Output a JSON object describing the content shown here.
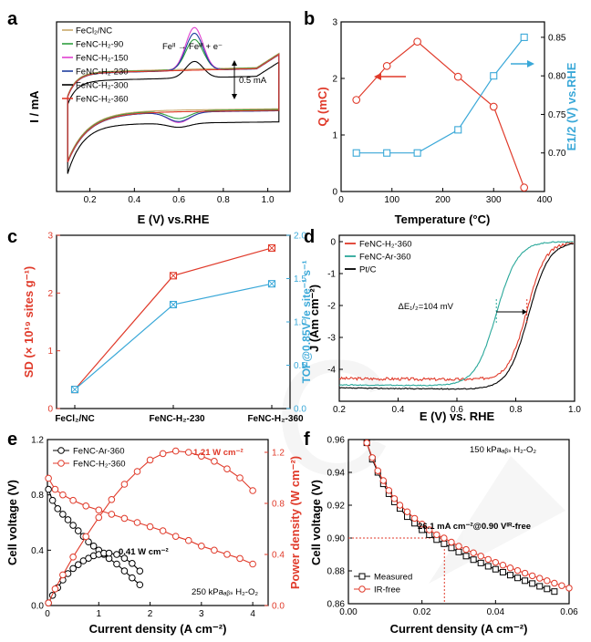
{
  "chart_data": [
    {
      "id": "a",
      "panel_label": "a",
      "type": "line",
      "xlabel": "E (V) vs.RHE",
      "ylabel": "I / mA",
      "xlim": [
        0.05,
        1.1
      ],
      "ylim": [
        -1.6,
        1.5
      ],
      "xticks": [
        0.2,
        0.4,
        0.6,
        0.8,
        1.0
      ],
      "xtick_labels": [
        "0.2",
        "0.4",
        "0.6",
        "0.8",
        "1.0"
      ],
      "annotation": "Feᴵᴵ → Feᴵᴵᴵ + e⁻",
      "scale_bar_label": "0.5 mA",
      "scale_bar_value": 0.5,
      "series": [
        {
          "name": "FeCl₂/NC",
          "color": "#c9a86a",
          "peak": 0.0,
          "shift": 0.04,
          "steep": 1.0
        },
        {
          "name": "FeNC-H₂-90",
          "color": "#2e9e3e",
          "peak": 0.55,
          "shift": 0.03,
          "steep": 1.0
        },
        {
          "name": "FeNC-H₂-150",
          "color": "#e040d0",
          "peak": 0.78,
          "shift": 0.02,
          "steep": 1.0
        },
        {
          "name": "FeNC-H₂-230",
          "color": "#1f3f9e",
          "peak": 0.68,
          "shift": 0.015,
          "steep": 1.0
        },
        {
          "name": "FeNC-H₂-300",
          "color": "#000000",
          "peak": 0.3,
          "shift": -0.12,
          "steep": 0.75
        },
        {
          "name": "FeNC-H₂-360",
          "color": "#e03a2a",
          "peak": 0.0,
          "shift": 0.02,
          "steep": 1.0
        }
      ]
    },
    {
      "id": "b",
      "panel_label": "b",
      "type": "line",
      "xlabel": "Temperature (°C)",
      "ylabel": "Q (mC)",
      "ylabel_right": "E1/2 (V) vs.RHE",
      "xlim": [
        0,
        400
      ],
      "ylim": [
        0,
        3
      ],
      "ylim_right": [
        0.65,
        0.87
      ],
      "xticks": [
        0,
        100,
        200,
        300,
        400
      ],
      "xtick_labels": [
        "0",
        "100",
        "200",
        "300",
        "400"
      ],
      "yticks": [
        0,
        1,
        2,
        3
      ],
      "ytick_labels": [
        "0",
        "1",
        "2",
        "3"
      ],
      "yticks_right": [
        0.7,
        0.75,
        0.8,
        0.85
      ],
      "ytick_labels_right": [
        "0.70",
        "0.75",
        "0.80",
        "0.85"
      ],
      "series": [
        {
          "name": "Q",
          "axis": "left",
          "color": "#e03a2a",
          "x": [
            30,
            90,
            150,
            230,
            300,
            360
          ],
          "values": [
            1.62,
            2.22,
            2.65,
            2.03,
            1.5,
            0.07
          ]
        },
        {
          "name": "E1/2",
          "axis": "right",
          "color": "#3aa8d8",
          "x": [
            30,
            90,
            150,
            230,
            300,
            360
          ],
          "values": [
            0.7,
            0.7,
            0.7,
            0.73,
            0.8,
            0.85
          ]
        }
      ]
    },
    {
      "id": "c",
      "panel_label": "c",
      "type": "line",
      "xlabel": "",
      "ylabel": "SD (× 10¹⁹ sites g⁻¹)",
      "ylabel_right": "TOF@0.85V /e site⁻¹ s⁻¹",
      "categories": [
        "FeCl₂/NC",
        "FeNC-H₂-230",
        "FeNC-H₂-360"
      ],
      "ylim": [
        0,
        3
      ],
      "ylim_right": [
        0,
        2
      ],
      "yticks": [
        0,
        1,
        2,
        3
      ],
      "ytick_labels": [
        "0",
        "1",
        "2",
        "3"
      ],
      "yticks_right": [
        0,
        0.5,
        1.0,
        1.5,
        2.0
      ],
      "ytick_labels_right": [
        "0.0",
        "0.5",
        "1.0",
        "1.5",
        "2.0"
      ],
      "series": [
        {
          "name": "SD",
          "axis": "left",
          "color": "#e03a2a",
          "values": [
            0.33,
            2.3,
            2.78
          ]
        },
        {
          "name": "TOF",
          "axis": "right",
          "color": "#3aa8d8",
          "values": [
            0.22,
            1.2,
            1.44
          ]
        }
      ]
    },
    {
      "id": "d",
      "panel_label": "d",
      "type": "line",
      "xlabel": "E  (V) vs. RHE",
      "ylabel": "J (Am cm⁻²)",
      "xlim": [
        0.2,
        1.0
      ],
      "ylim": [
        -5.0,
        0.2
      ],
      "xticks": [
        0.2,
        0.4,
        0.6,
        0.8,
        1.0
      ],
      "xtick_labels": [
        "0.2",
        "0.4",
        "0.6",
        "0.8",
        "1.0"
      ],
      "yticks": [
        -4,
        -3,
        -2,
        -1,
        0
      ],
      "ytick_labels": [
        "-4",
        "-3",
        "-2",
        "-1",
        "0"
      ],
      "annotation": "ΔE₁/₂=104 mV",
      "series": [
        {
          "name": "FeNC-H₂-360",
          "color": "#e03a2a",
          "e_half": 0.838,
          "limit": -4.35,
          "width": 0.032
        },
        {
          "name": "FeNC-Ar-360",
          "color": "#2aa89a",
          "e_half": 0.734,
          "limit": -4.55,
          "width": 0.036
        },
        {
          "name": "Pt/C",
          "color": "#000000",
          "e_half": 0.843,
          "limit": -4.65,
          "width": 0.035
        }
      ]
    },
    {
      "id": "e",
      "panel_label": "e",
      "type": "line",
      "xlabel": "Current density (A cm⁻²)",
      "ylabel": "Cell voltage (V)",
      "ylabel_right": "Power density (W cm⁻²)",
      "xlim": [
        0,
        4.3
      ],
      "ylim": [
        0,
        1.2
      ],
      "ylim_right": [
        0,
        1.3
      ],
      "xticks": [
        0,
        1,
        2,
        3,
        4
      ],
      "xtick_labels": [
        "0",
        "1",
        "2",
        "3",
        "4"
      ],
      "yticks": [
        0,
        0.4,
        0.8,
        1.2
      ],
      "ytick_labels": [
        "0.0",
        "0.4",
        "0.8",
        "1.2"
      ],
      "yticks_right": [
        0,
        0.4,
        0.8,
        1.2
      ],
      "ytick_labels_right": [
        "0.0",
        "0.4",
        "0.8",
        "1.2"
      ],
      "condition": "250 kPaₐᵦₛ H₂-O₂",
      "peak_labels": [
        "1.21 W cm⁻²",
        "0.41 W cm⁻²"
      ],
      "series": [
        {
          "name": "FeNC-Ar-360",
          "color": "#000000",
          "type": "polarization",
          "x": [
            0.02,
            0.1,
            0.2,
            0.3,
            0.4,
            0.5,
            0.6,
            0.7,
            0.8,
            0.9,
            1.0,
            1.1,
            1.2,
            1.35,
            1.5,
            1.65,
            1.8
          ],
          "values": [
            0.84,
            0.76,
            0.7,
            0.66,
            0.62,
            0.58,
            0.54,
            0.5,
            0.46,
            0.43,
            0.4,
            0.37,
            0.34,
            0.3,
            0.25,
            0.2,
            0.15
          ]
        },
        {
          "name": "FeNC-H₂-360",
          "color": "#e03a2a",
          "type": "polarization",
          "x": [
            0.02,
            0.15,
            0.3,
            0.5,
            0.75,
            1.0,
            1.25,
            1.5,
            1.75,
            2.0,
            2.25,
            2.5,
            2.75,
            3.0,
            3.25,
            3.5,
            3.75,
            4.0
          ],
          "values": [
            0.92,
            0.84,
            0.8,
            0.76,
            0.72,
            0.69,
            0.66,
            0.63,
            0.6,
            0.57,
            0.54,
            0.5,
            0.47,
            0.43,
            0.4,
            0.37,
            0.34,
            0.3
          ]
        },
        {
          "name": "FeNC-Ar-360 power",
          "color": "#000000",
          "type": "power",
          "x": [
            0.02,
            0.1,
            0.2,
            0.3,
            0.4,
            0.5,
            0.6,
            0.7,
            0.8,
            0.9,
            1.0,
            1.1,
            1.2,
            1.35,
            1.5,
            1.65,
            1.8
          ],
          "values": [
            0.02,
            0.08,
            0.14,
            0.2,
            0.25,
            0.29,
            0.32,
            0.35,
            0.37,
            0.39,
            0.4,
            0.41,
            0.41,
            0.4,
            0.37,
            0.33,
            0.27
          ]
        },
        {
          "name": "FeNC-H₂-360 power",
          "color": "#e03a2a",
          "type": "power",
          "x": [
            0.02,
            0.15,
            0.3,
            0.5,
            0.75,
            1.0,
            1.25,
            1.5,
            1.75,
            2.0,
            2.25,
            2.5,
            2.75,
            3.0,
            3.25,
            3.5,
            3.75,
            4.0
          ],
          "values": [
            0.02,
            0.13,
            0.24,
            0.38,
            0.54,
            0.69,
            0.83,
            0.95,
            1.05,
            1.14,
            1.19,
            1.21,
            1.2,
            1.17,
            1.13,
            1.07,
            1.0,
            0.9
          ]
        }
      ]
    },
    {
      "id": "f",
      "panel_label": "f",
      "type": "line",
      "xlabel": "Current density (A cm⁻²)",
      "ylabel": "Cell voltage (V)",
      "xlim": [
        0,
        0.06
      ],
      "ylim": [
        0.86,
        0.96
      ],
      "xticks": [
        0,
        0.02,
        0.04,
        0.06
      ],
      "xtick_labels": [
        "0.00",
        "0.02",
        "0.04",
        "0.06"
      ],
      "yticks": [
        0.86,
        0.88,
        0.9,
        0.92,
        0.94,
        0.96
      ],
      "ytick_labels": [
        "0.86",
        "0.88",
        "0.90",
        "0.92",
        "0.94",
        "0.96"
      ],
      "condition": "150 kPaₐᵦₛ H₂-O₂",
      "annotation": "26.1 mA cm⁻²@0.90 Vᴵᴿ-free",
      "marker_x": 0.0261,
      "marker_y": 0.9,
      "series": [
        {
          "name": "Measured",
          "color": "#000000",
          "x": [
            0.005,
            0.0065,
            0.008,
            0.0095,
            0.011,
            0.0125,
            0.014,
            0.016,
            0.018,
            0.02,
            0.022,
            0.024,
            0.026,
            0.028,
            0.03,
            0.032,
            0.034,
            0.036,
            0.038,
            0.04,
            0.042,
            0.044,
            0.046,
            0.048,
            0.05,
            0.052,
            0.054,
            0.056
          ],
          "values": [
            0.958,
            0.948,
            0.94,
            0.933,
            0.927,
            0.922,
            0.918,
            0.913,
            0.909,
            0.905,
            0.902,
            0.899,
            0.8965,
            0.894,
            0.8915,
            0.889,
            0.8868,
            0.8848,
            0.8828,
            0.881,
            0.8792,
            0.8774,
            0.8757,
            0.874,
            0.8723,
            0.8706,
            0.869,
            0.8674
          ]
        },
        {
          "name": "IR-free",
          "color": "#e03a2a",
          "x": [
            0.005,
            0.0065,
            0.008,
            0.0095,
            0.011,
            0.0125,
            0.014,
            0.016,
            0.018,
            0.02,
            0.022,
            0.024,
            0.026,
            0.028,
            0.03,
            0.032,
            0.034,
            0.036,
            0.038,
            0.04,
            0.042,
            0.044,
            0.046,
            0.048,
            0.05,
            0.052,
            0.054,
            0.056,
            0.058,
            0.06
          ],
          "values": [
            0.958,
            0.949,
            0.941,
            0.935,
            0.929,
            0.924,
            0.92,
            0.916,
            0.912,
            0.9085,
            0.905,
            0.902,
            0.9,
            0.8975,
            0.895,
            0.893,
            0.891,
            0.889,
            0.887,
            0.8852,
            0.8835,
            0.8818,
            0.8802,
            0.8786,
            0.877,
            0.8755,
            0.874,
            0.8725,
            0.871,
            0.8695
          ]
        }
      ]
    }
  ],
  "watermark_text": "C"
}
